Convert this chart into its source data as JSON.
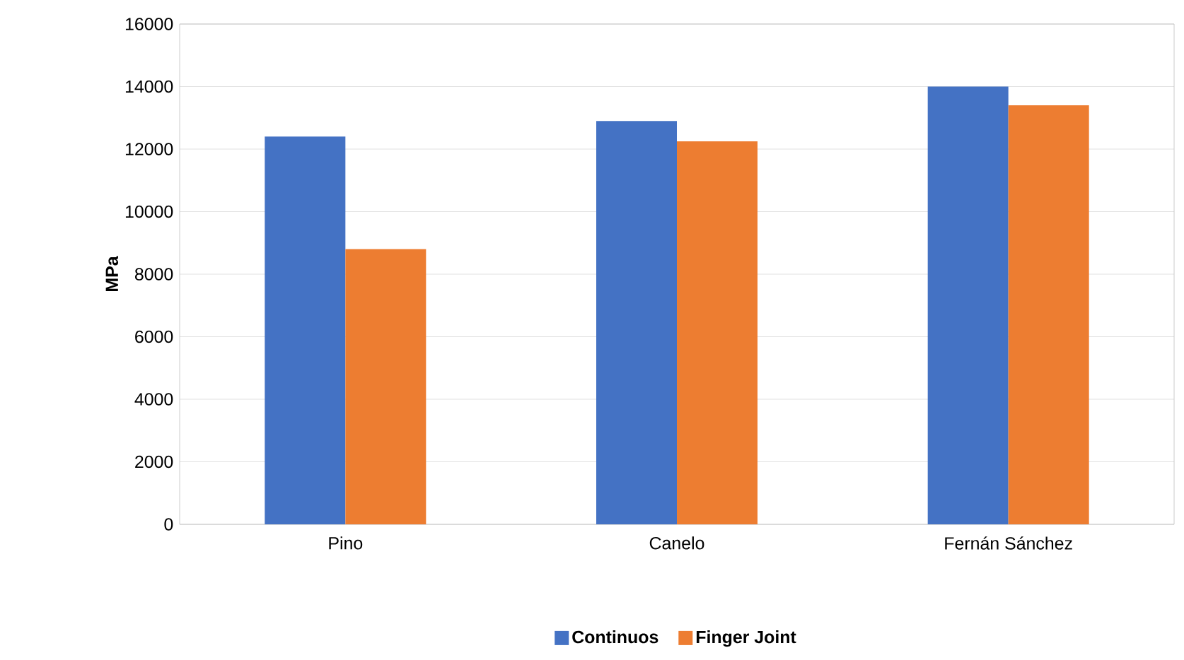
{
  "chart_data": {
    "type": "bar",
    "ylabel": "MPa",
    "categories": [
      "Pino",
      "Canelo",
      "Fernán Sánchez"
    ],
    "series": [
      {
        "name": "Continuos",
        "color": "#4472c4",
        "values": [
          12400,
          12900,
          14000
        ]
      },
      {
        "name": "Finger Joint",
        "color": "#ed7d31",
        "values": [
          8800,
          12250,
          13400
        ]
      }
    ],
    "ylim": [
      0,
      16000
    ],
    "yticks": [
      0,
      2000,
      4000,
      6000,
      8000,
      10000,
      12000,
      14000,
      16000
    ],
    "grid": "y",
    "legend": "bottom"
  }
}
